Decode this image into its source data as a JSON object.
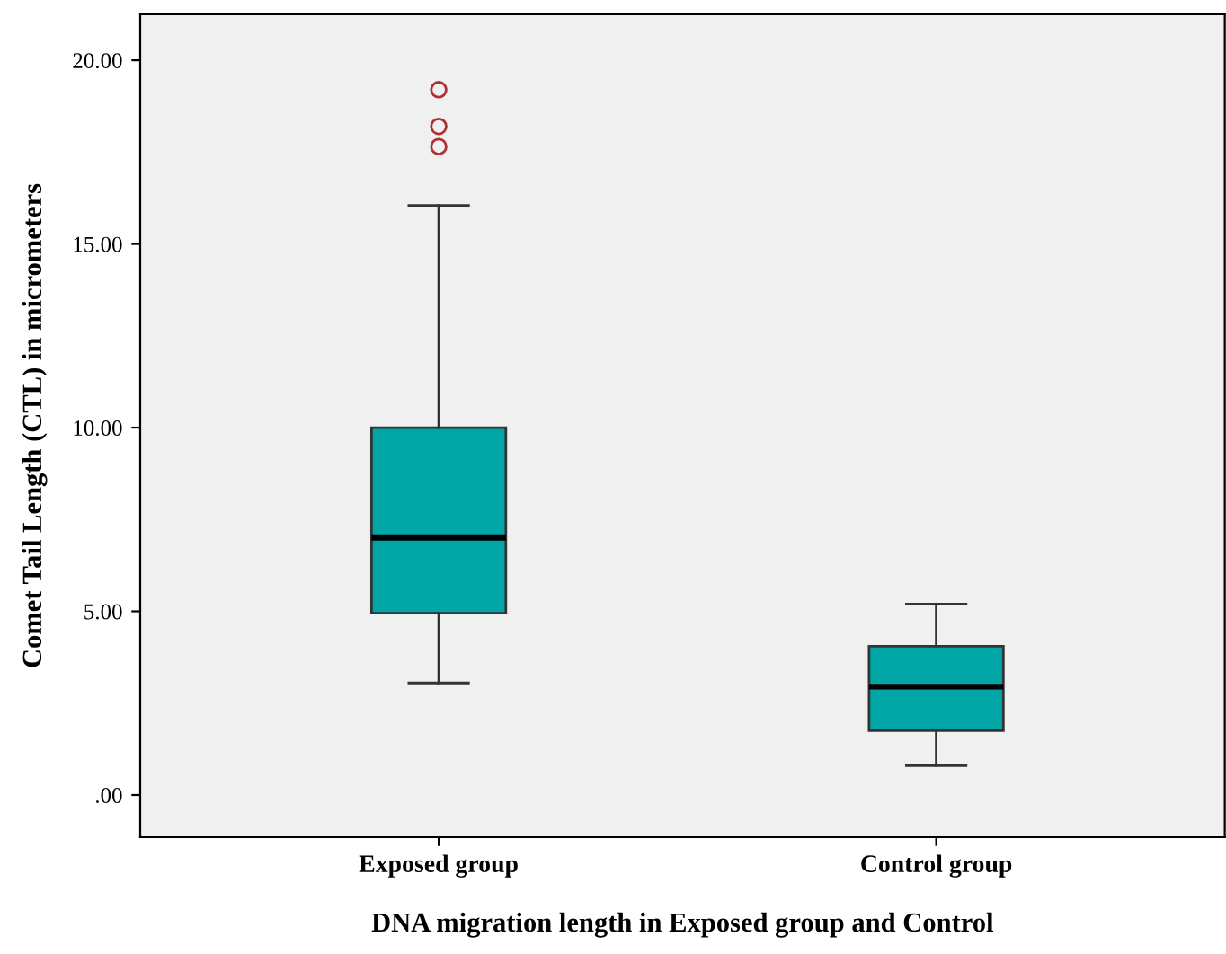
{
  "chart_data": {
    "type": "box",
    "xlabel": "DNA migration length in Exposed group and Control",
    "ylabel": "Comet Tail Length (CTL) in micrometers",
    "categories": [
      "Exposed group",
      "Control group"
    ],
    "color": "#00a6a6",
    "boxes": [
      {
        "low": 3.05,
        "q1": 4.95,
        "median": 7.0,
        "q3": 10.0,
        "high": 16.05,
        "outliers": [
          17.65,
          18.2,
          19.2
        ]
      },
      {
        "low": 0.8,
        "q1": 1.75,
        "median": 2.95,
        "q3": 4.05,
        "high": 5.2
      }
    ],
    "ylim": [
      -1.15,
      21.25
    ],
    "yticks": [
      {
        "value": 0,
        "label": ".00"
      },
      {
        "value": 5,
        "label": "5.00"
      },
      {
        "value": 10,
        "label": "10.00"
      },
      {
        "value": 15,
        "label": "15.00"
      },
      {
        "value": 20,
        "label": "20.00"
      }
    ],
    "grid": false
  }
}
